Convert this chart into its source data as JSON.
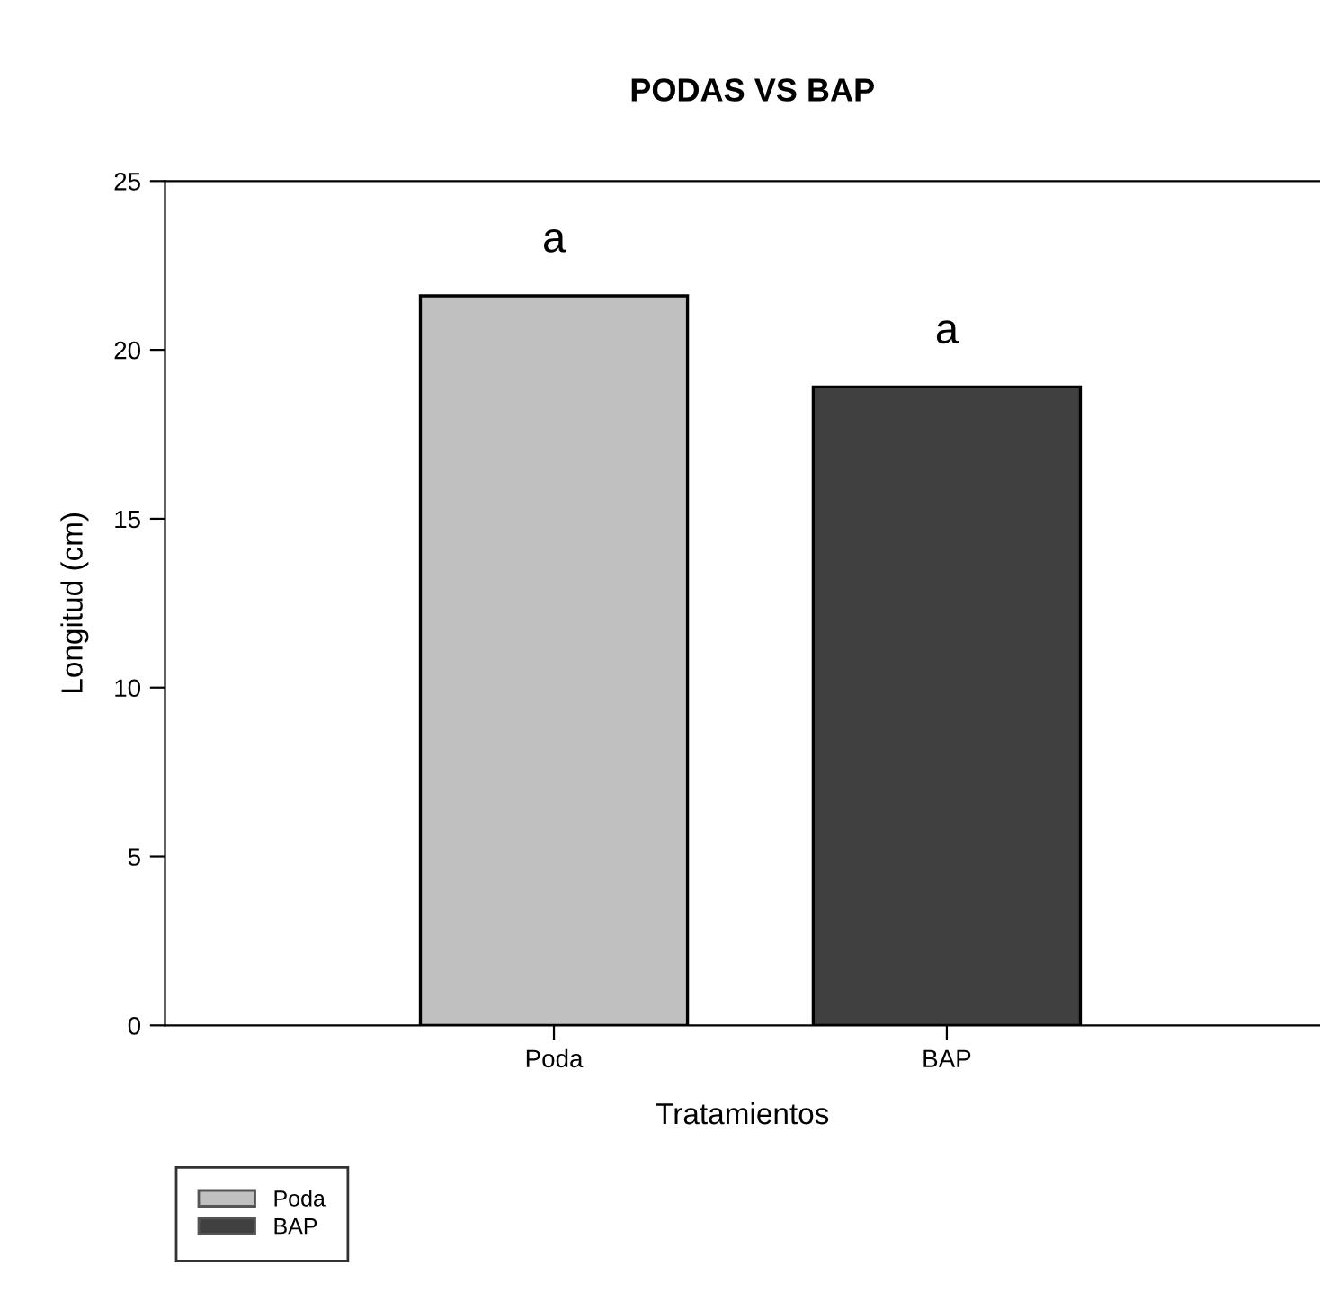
{
  "chart_data": {
    "type": "bar",
    "title": "PODAS VS BAP",
    "xlabel": "Tratamientos",
    "ylabel": "Longitud (cm)",
    "categories": [
      "Poda",
      "BAP"
    ],
    "series": [
      {
        "name": "Poda",
        "color": "#c0c0c0",
        "values": [
          21.6,
          null
        ]
      },
      {
        "name": "BAP",
        "color": "#404040",
        "values": [
          null,
          18.9
        ]
      }
    ],
    "ylim": [
      0,
      25
    ],
    "yticks": [
      0,
      5,
      10,
      15,
      20,
      25
    ],
    "annotations": [
      "a",
      "a"
    ],
    "grid": false,
    "legend": "bottom left"
  }
}
